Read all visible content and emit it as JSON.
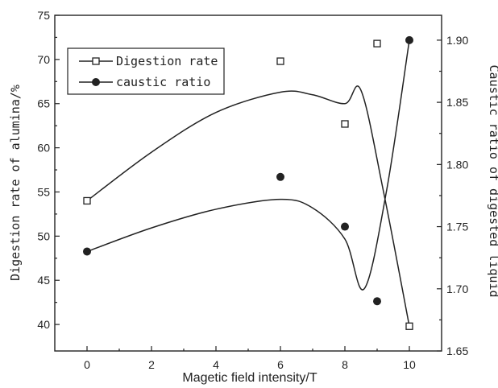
{
  "chart_data": {
    "type": "scatter",
    "xlabel": "Magetic field intensity/T",
    "ylabel_left": "Digestion rate of alumina/%",
    "ylabel_right": "Caustic ratio of digested liquid",
    "xlim": [
      -1,
      11
    ],
    "ylim_left": [
      37,
      75
    ],
    "ylim_right": [
      1.65,
      1.92
    ],
    "x_ticks": [
      "0",
      "2",
      "4",
      "6",
      "8",
      "10"
    ],
    "y_ticks_left": [
      "40",
      "45",
      "50",
      "55",
      "60",
      "65",
      "70",
      "75"
    ],
    "y_ticks_right": [
      "1.65",
      "1.70",
      "1.75",
      "1.80",
      "1.85",
      "1.90"
    ],
    "legend_position": "top-left",
    "series": [
      {
        "name": "Digestion rate",
        "axis": "left",
        "marker": "open-square",
        "x": [
          0,
          6,
          8,
          9,
          10
        ],
        "y": [
          54.0,
          69.8,
          62.7,
          71.8,
          39.8
        ]
      },
      {
        "name": "caustic ratio",
        "axis": "right",
        "marker": "filled-circle",
        "x": [
          0,
          6,
          8,
          9,
          10
        ],
        "y": [
          1.73,
          1.79,
          1.75,
          1.69,
          1.9
        ]
      }
    ],
    "curves": [
      {
        "axis": "left",
        "points": [
          [
            0,
            54.0
          ],
          [
            2,
            59.5
          ],
          [
            4,
            64.0
          ],
          [
            6,
            66.3
          ],
          [
            7,
            66.0
          ],
          [
            8,
            65.0
          ],
          [
            8.5,
            66.5
          ],
          [
            9.2,
            55.0
          ],
          [
            10,
            39.8
          ]
        ]
      },
      {
        "axis": "right",
        "points": [
          [
            0,
            1.73
          ],
          [
            2,
            1.749
          ],
          [
            4,
            1.764
          ],
          [
            6,
            1.772
          ],
          [
            7,
            1.765
          ],
          [
            8,
            1.74
          ],
          [
            8.6,
            1.7
          ],
          [
            9.3,
            1.78
          ],
          [
            10,
            1.9
          ]
        ]
      }
    ]
  }
}
